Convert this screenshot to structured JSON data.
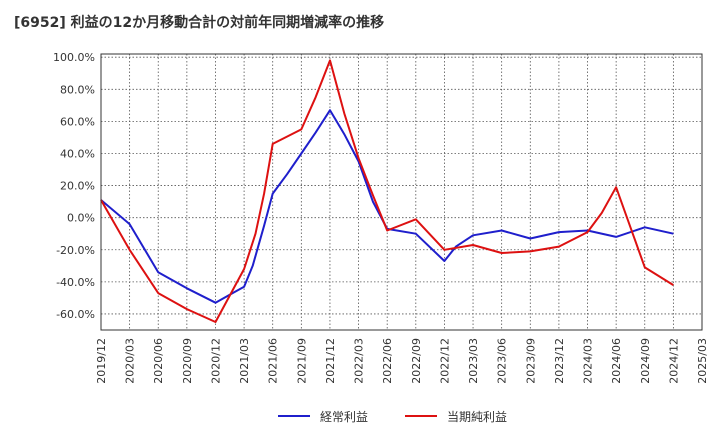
{
  "chart_data": {
    "type": "line",
    "title": "[6952]  利益の12か月移動合計の対前年同期増減率の推移",
    "xlabel": "",
    "ylabel": "",
    "ylim": [
      -70,
      102
    ],
    "yticks": [
      100,
      80,
      60,
      40,
      20,
      0,
      -20,
      -40,
      -60
    ],
    "ytick_labels": [
      "100.0%",
      "80.0%",
      "60.0%",
      "40.0%",
      "20.0%",
      "0.0%",
      "-20.0%",
      "-40.0%",
      "-60.0%"
    ],
    "xtick_labels": [
      "2019/12",
      "2020/03",
      "2020/06",
      "2020/09",
      "2020/12",
      "2021/03",
      "2021/06",
      "2021/09",
      "2021/12",
      "2022/03",
      "2022/06",
      "2022/09",
      "2022/12",
      "2023/03",
      "2023/06",
      "2023/09",
      "2023/12",
      "2024/03",
      "2024/06",
      "2024/09",
      "2024/12",
      "2025/03"
    ],
    "grid": true,
    "legend": "bottom-center",
    "series": [
      {
        "name": "経常利益",
        "color": "#1f1fcc",
        "points": [
          [
            0,
            11
          ],
          [
            1,
            -4
          ],
          [
            2,
            -34
          ],
          [
            3,
            -44
          ],
          [
            4,
            -53
          ],
          [
            4.6,
            -47
          ],
          [
            5,
            -43
          ],
          [
            5.3,
            -30
          ],
          [
            5.7,
            -5
          ],
          [
            6,
            15
          ],
          [
            6.5,
            27
          ],
          [
            7,
            40
          ],
          [
            7.5,
            53
          ],
          [
            8,
            67
          ],
          [
            8.5,
            52
          ],
          [
            9,
            35
          ],
          [
            9.5,
            10
          ],
          [
            10,
            -7
          ],
          [
            11,
            -10
          ],
          [
            12,
            -27
          ],
          [
            12.4,
            -18
          ],
          [
            13,
            -11
          ],
          [
            14,
            -8
          ],
          [
            15,
            -13
          ],
          [
            16,
            -9
          ],
          [
            17,
            -8
          ],
          [
            18,
            -12
          ],
          [
            19,
            -6
          ],
          [
            20,
            -10
          ]
        ]
      },
      {
        "name": "当期純利益",
        "color": "#dd1111",
        "points": [
          [
            0,
            11
          ],
          [
            1,
            -20
          ],
          [
            2,
            -47
          ],
          [
            3,
            -57
          ],
          [
            4,
            -65
          ],
          [
            5,
            -32
          ],
          [
            5.4,
            -10
          ],
          [
            5.7,
            15
          ],
          [
            6,
            46
          ],
          [
            7,
            55
          ],
          [
            7.5,
            75
          ],
          [
            8,
            98
          ],
          [
            8.5,
            65
          ],
          [
            9,
            37
          ],
          [
            9.5,
            14
          ],
          [
            10,
            -8
          ],
          [
            11,
            -1
          ],
          [
            12,
            -20
          ],
          [
            13,
            -17
          ],
          [
            14,
            -22
          ],
          [
            15,
            -21
          ],
          [
            16,
            -18
          ],
          [
            17,
            -9
          ],
          [
            17.5,
            3
          ],
          [
            18,
            19
          ],
          [
            19,
            -31
          ],
          [
            20,
            -42
          ]
        ]
      }
    ]
  }
}
